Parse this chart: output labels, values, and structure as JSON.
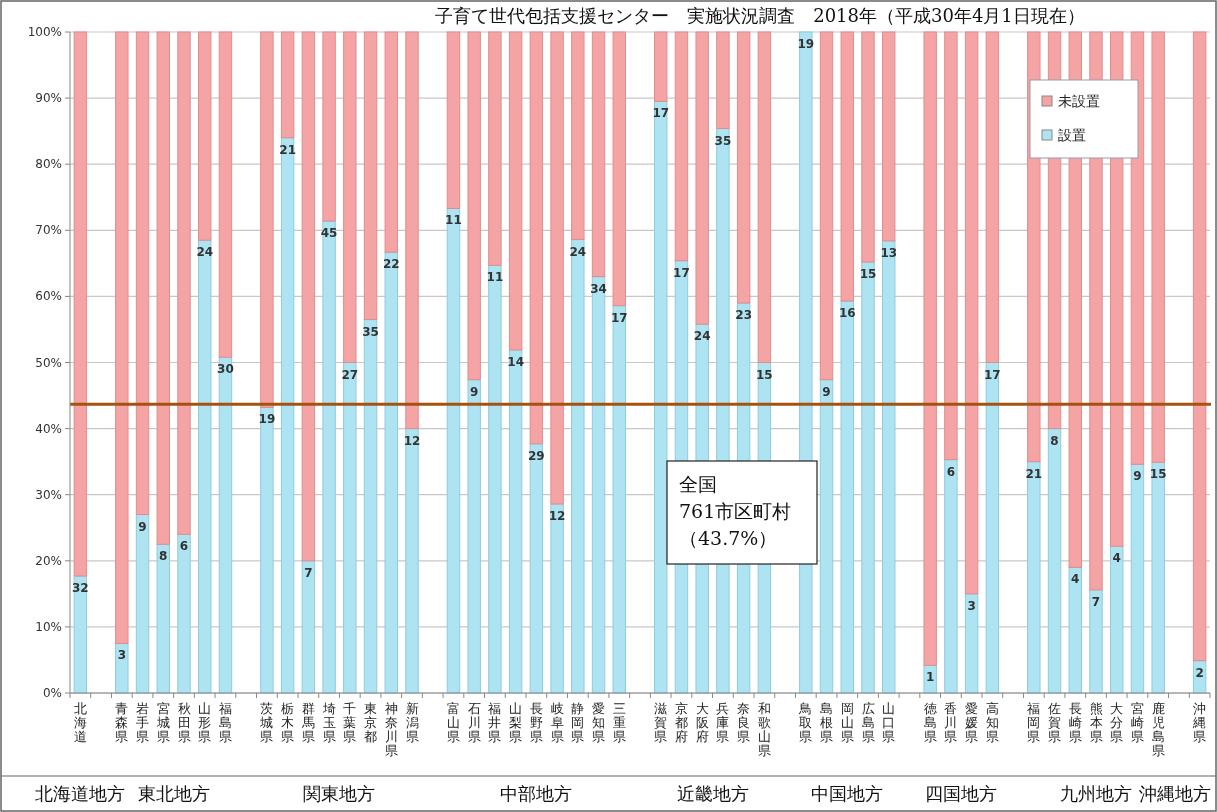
{
  "chart_data": {
    "type": "bar",
    "title": "子育て世代包括支援センター　実施状況調査　2018年（平成30年4月1日現在）",
    "categories": [
      "北海道",
      null,
      "青森県",
      "岩手県",
      "宮城県",
      "秋田県",
      "山形県",
      "福島県",
      null,
      "茨城県",
      "栃木県",
      "群馬県",
      "埼玉県",
      "千葉県",
      "東京都",
      "神奈川県",
      "新潟県",
      null,
      "富山県",
      "石川県",
      "福井県",
      "山梨県",
      "長野県",
      "岐阜県",
      "静岡県",
      "愛知県",
      "三重県",
      null,
      "滋賀県",
      "京都府",
      "大阪府",
      "兵庫県",
      "奈良県",
      "和歌山県",
      null,
      "鳥取県",
      "島根県",
      "岡山県",
      "広島県",
      "山口県",
      null,
      "徳島県",
      "香川県",
      "愛媛県",
      "高知県",
      null,
      "福岡県",
      "佐賀県",
      "長崎県",
      "熊本県",
      "大分県",
      "宮崎県",
      "鹿児島県",
      null,
      "沖縄県"
    ],
    "series": [
      {
        "name": "設置",
        "color": "#aee3f2",
        "values": [
          17.7,
          null,
          7.5,
          27,
          22.5,
          24,
          68.5,
          50.8,
          null,
          43.2,
          84,
          20,
          71.4,
          50,
          56.5,
          66.7,
          40,
          null,
          73.3,
          47.4,
          64.7,
          51.9,
          37.7,
          28.6,
          68.6,
          63,
          58.6,
          null,
          89.5,
          65.4,
          55.8,
          85.4,
          59,
          50,
          null,
          100,
          47.4,
          59.3,
          65.2,
          68.4,
          null,
          4.2,
          35.3,
          15,
          50,
          null,
          35,
          40,
          19,
          15.6,
          22.2,
          34.6,
          34.9,
          null,
          4.9
        ]
      },
      {
        "name": "未設置",
        "color": "#f4a4a4",
        "values": [
          82.3,
          null,
          92.5,
          73,
          77.5,
          76,
          31.5,
          49.2,
          null,
          56.8,
          16,
          80,
          28.6,
          50,
          43.5,
          33.3,
          60,
          null,
          26.7,
          52.6,
          35.3,
          48.1,
          62.3,
          71.4,
          31.4,
          37,
          41.4,
          null,
          10.5,
          34.6,
          44.2,
          14.6,
          41,
          50,
          null,
          0,
          52.6,
          40.7,
          34.8,
          31.6,
          null,
          95.8,
          64.7,
          85,
          50,
          null,
          65,
          60,
          81,
          84.4,
          77.8,
          65.4,
          65.1,
          null,
          95.1
        ]
      }
    ],
    "stacked": true,
    "ylim": [
      0,
      100
    ],
    "yticks": [
      {
        "value": 0,
        "label": "0%"
      },
      {
        "value": 10,
        "label": "10%"
      },
      {
        "value": 20,
        "label": "20%"
      },
      {
        "value": 30,
        "label": "30%"
      },
      {
        "value": 40,
        "label": "40%"
      },
      {
        "value": 50,
        "label": "50%"
      },
      {
        "value": 60,
        "label": "60%"
      },
      {
        "value": 70,
        "label": "70%"
      },
      {
        "value": 80,
        "label": "80%"
      },
      {
        "value": 90,
        "label": "90%"
      },
      {
        "value": 100,
        "label": "100%"
      }
    ],
    "grid": "y",
    "legend": "top right",
    "ref_lines": [
      {
        "axis": "y",
        "value": 43.7,
        "color": "#a5520f"
      }
    ],
    "annotations": [
      "全国",
      "761市区町村",
      "（43.7%）",
      "北海道地方",
      "東北地方",
      "関東地方",
      "中部地方",
      "近畿地方",
      "中国地方",
      "四国地方",
      "九州地方",
      "沖縄地方",
      {
        "text": "32",
        "x": "北海道",
        "y": 17.7
      },
      {
        "text": "3",
        "x": "青森県",
        "y": 7.5
      },
      {
        "text": "9",
        "x": "岩手県",
        "y": 27
      },
      {
        "text": "8",
        "x": "宮城県",
        "y": 22.5
      },
      {
        "text": "6",
        "x": "秋田県",
        "y": 24
      },
      {
        "text": "24",
        "x": "山形県",
        "y": 68.5
      },
      {
        "text": "30",
        "x": "福島県",
        "y": 50.8
      },
      {
        "text": "19",
        "x": "茨城県",
        "y": 43.2
      },
      {
        "text": "21",
        "x": "栃木県",
        "y": 84
      },
      {
        "text": "7",
        "x": "群馬県",
        "y": 20
      },
      {
        "text": "45",
        "x": "埼玉県",
        "y": 71.4
      },
      {
        "text": "27",
        "x": "千葉県",
        "y": 50
      },
      {
        "text": "35",
        "x": "東京都",
        "y": 56.5
      },
      {
        "text": "22",
        "x": "神奈川県",
        "y": 66.7
      },
      {
        "text": "12",
        "x": "新潟県",
        "y": 40
      },
      {
        "text": "11",
        "x": "富山県",
        "y": 73.3
      },
      {
        "text": "9",
        "x": "石川県",
        "y": 47.4
      },
      {
        "text": "11",
        "x": "福井県",
        "y": 64.7
      },
      {
        "text": "14",
        "x": "山梨県",
        "y": 51.9
      },
      {
        "text": "29",
        "x": "長野県",
        "y": 37.7
      },
      {
        "text": "12",
        "x": "岐阜県",
        "y": 28.6
      },
      {
        "text": "24",
        "x": "静岡県",
        "y": 68.6
      },
      {
        "text": "34",
        "x": "愛知県",
        "y": 63
      },
      {
        "text": "17",
        "x": "三重県",
        "y": 58.6
      },
      {
        "text": "17",
        "x": "滋賀県",
        "y": 89.5
      },
      {
        "text": "17",
        "x": "京都府",
        "y": 65.4
      },
      {
        "text": "24",
        "x": "大阪府",
        "y": 55.8
      },
      {
        "text": "35",
        "x": "兵庫県",
        "y": 85.4
      },
      {
        "text": "23",
        "x": "奈良県",
        "y": 59
      },
      {
        "text": "15",
        "x": "和歌山県",
        "y": 50
      },
      {
        "text": "19",
        "x": "鳥取県",
        "y": 100
      },
      {
        "text": "9",
        "x": "島根県",
        "y": 47.4
      },
      {
        "text": "16",
        "x": "岡山県",
        "y": 59.3
      },
      {
        "text": "15",
        "x": "広島県",
        "y": 65.2
      },
      {
        "text": "13",
        "x": "山口県",
        "y": 68.4
      },
      {
        "text": "1",
        "x": "徳島県",
        "y": 4.2
      },
      {
        "text": "6",
        "x": "香川県",
        "y": 35.3
      },
      {
        "text": "3",
        "x": "愛媛県",
        "y": 15
      },
      {
        "text": "17",
        "x": "高知県",
        "y": 50
      },
      {
        "text": "21",
        "x": "福岡県",
        "y": 35
      },
      {
        "text": "8",
        "x": "佐賀県",
        "y": 40
      },
      {
        "text": "4",
        "x": "長崎県",
        "y": 19
      },
      {
        "text": "7",
        "x": "熊本県",
        "y": 15.6
      },
      {
        "text": "4",
        "x": "大分県",
        "y": 22.2
      },
      {
        "text": "9",
        "x": "宮崎県",
        "y": 34.6
      },
      {
        "text": "15",
        "x": "鹿児島県",
        "y": 34.9
      },
      {
        "text": "2",
        "x": "沖縄県",
        "y": 4.9
      }
    ]
  }
}
